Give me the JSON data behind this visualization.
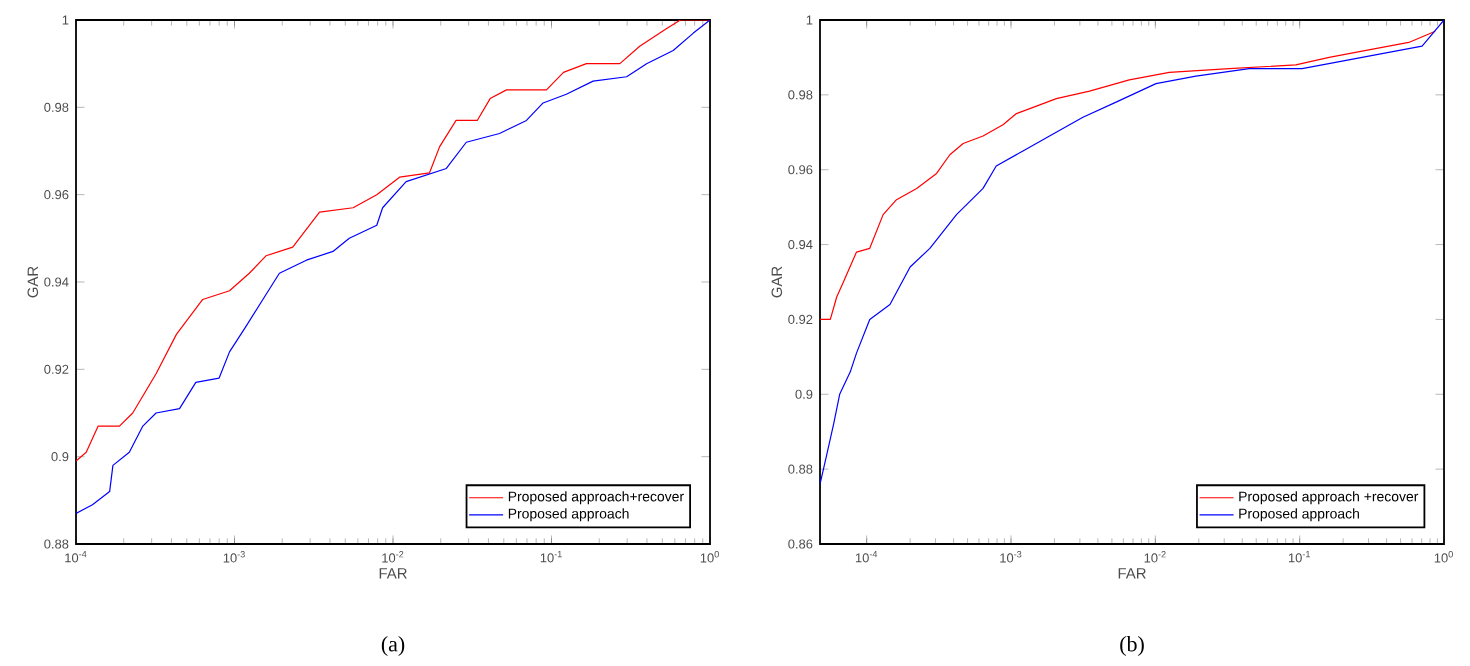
{
  "chart_data": [
    {
      "type": "line",
      "log": "x",
      "xlabel": "FAR",
      "ylabel": "GAR",
      "legend": "bottom right",
      "annotations": [
        "(a)"
      ],
      "xlim": [
        0.0001,
        1
      ],
      "ylim": [
        0.88,
        1
      ],
      "xticks": [
        {
          "value": 0.0001,
          "label": "10$^{-4}$"
        },
        {
          "value": 0.001,
          "label": "10$^{-3}$"
        },
        {
          "value": 0.01,
          "label": "10$^{-2}$"
        },
        {
          "value": 0.1,
          "label": "10$^{-1}$"
        },
        {
          "value": 1,
          "label": "10$^{0}$"
        }
      ],
      "yticks": [
        0.88,
        0.9,
        0.92,
        0.94,
        0.96,
        0.98,
        1
      ],
      "series": [
        {
          "name": "Proposed approach+recover",
          "color": "#ff0000",
          "x": [
            0.0001,
            0.000116,
            0.000138,
            0.000188,
            0.000228,
            0.00032,
            0.00043,
            0.00063,
            0.00093,
            0.00124,
            0.00158,
            0.00233,
            0.00344,
            0.0056,
            0.0079,
            0.011,
            0.017,
            0.0197,
            0.025,
            0.034,
            0.041,
            0.052,
            0.093,
            0.119,
            0.166,
            0.27,
            0.36,
            0.53,
            0.65,
            1
          ],
          "values": [
            0.899,
            0.901,
            0.907,
            0.907,
            0.91,
            0.919,
            0.928,
            0.936,
            0.938,
            0.942,
            0.946,
            0.948,
            0.956,
            0.957,
            0.96,
            0.964,
            0.965,
            0.971,
            0.977,
            0.977,
            0.982,
            0.984,
            0.984,
            0.988,
            0.99,
            0.99,
            0.994,
            0.998,
            1,
            1
          ]
        },
        {
          "name": "Proposed approach",
          "color": "#0000ff",
          "x": [
            0.0001,
            0.000127,
            0.000163,
            0.000171,
            0.000217,
            0.000264,
            0.00032,
            0.00045,
            0.00057,
            0.0008,
            0.00093,
            0.00119,
            0.00151,
            0.00192,
            0.00284,
            0.00418,
            0.0053,
            0.0079,
            0.0086,
            0.0121,
            0.0217,
            0.029,
            0.047,
            0.0695,
            0.0885,
            0.124,
            0.183,
            0.298,
            0.398,
            0.586,
            0.785,
            1
          ],
          "values": [
            0.887,
            0.889,
            0.892,
            0.898,
            0.901,
            0.907,
            0.91,
            0.911,
            0.917,
            0.918,
            0.924,
            0.93,
            0.936,
            0.942,
            0.945,
            0.947,
            0.95,
            0.953,
            0.957,
            0.963,
            0.966,
            0.972,
            0.974,
            0.977,
            0.981,
            0.983,
            0.986,
            0.987,
            0.99,
            0.993,
            0.997,
            1
          ]
        }
      ]
    },
    {
      "type": "line",
      "log": "x",
      "xlabel": "FAR",
      "ylabel": "GAR",
      "legend": "bottom right",
      "annotations": [
        "(b)"
      ],
      "xlim": [
        4.75e-05,
        1
      ],
      "ylim": [
        0.86,
        1
      ],
      "xticks": [
        {
          "value": 0.0001,
          "label": "10$^{-4}$"
        },
        {
          "value": 0.001,
          "label": "10$^{-3}$"
        },
        {
          "value": 0.01,
          "label": "10$^{-2}$"
        },
        {
          "value": 0.1,
          "label": "10$^{-1}$"
        },
        {
          "value": 1,
          "label": "10$^{0}$"
        }
      ],
      "yticks": [
        0.86,
        0.88,
        0.9,
        0.92,
        0.94,
        0.96,
        0.98,
        1
      ],
      "series": [
        {
          "name": "Proposed approach +recover",
          "color": "#ff0000",
          "x": [
            4.75e-05,
            5.6e-05,
            6.2e-05,
            6.9e-05,
            8.5e-05,
            0.000105,
            0.00013,
            0.000161,
            0.000222,
            0.000305,
            0.000377,
            0.000466,
            0.00064,
            0.00088,
            0.00109,
            0.0015,
            0.00206,
            0.0035,
            0.0066,
            0.0125,
            0.0325,
            0.094,
            0.16,
            0.301,
            0.57,
            0.87
          ],
          "values": [
            0.92,
            0.92,
            0.926,
            0.93,
            0.938,
            0.939,
            0.948,
            0.952,
            0.955,
            0.959,
            0.964,
            0.967,
            0.969,
            0.972,
            0.975,
            0.977,
            0.979,
            0.981,
            0.984,
            0.986,
            0.987,
            0.988,
            0.99,
            0.992,
            0.994,
            0.997
          ]
        },
        {
          "name": "Proposed approach",
          "color": "#0000ff",
          "x": [
            4.75e-05,
            5.3e-05,
            5.9e-05,
            6.5e-05,
            7.7e-05,
            8.5e-05,
            0.000105,
            0.000145,
            0.0002,
            0.000274,
            0.000419,
            0.00064,
            0.00079,
            0.00121,
            0.00185,
            0.00315,
            0.0053,
            0.0101,
            0.0191,
            0.0447,
            0.104,
            0.197,
            0.372,
            0.705,
            1
          ],
          "values": [
            0.876,
            0.884,
            0.892,
            0.9,
            0.906,
            0.911,
            0.92,
            0.924,
            0.934,
            0.939,
            0.948,
            0.955,
            0.961,
            0.965,
            0.969,
            0.974,
            0.978,
            0.983,
            0.985,
            0.987,
            0.987,
            0.989,
            0.991,
            0.993,
            1
          ]
        }
      ]
    }
  ]
}
